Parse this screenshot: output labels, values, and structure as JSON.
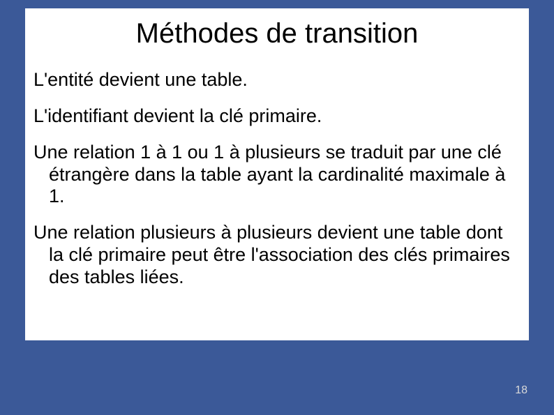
{
  "slide": {
    "title": "Méthodes de transition",
    "bullets": [
      "L'entité devient une table.",
      "L'identifiant devient la clé primaire.",
      "Une relation 1 à 1 ou 1 à plusieurs se traduit par une clé étrangère dans la table ayant la cardinalité maximale à 1.",
      "Une relation plusieurs à plusieurs devient une table dont la clé primaire peut être l'association des clés primaires des tables liées."
    ],
    "page_number": "18"
  },
  "style": {
    "background_color": "#3b5998",
    "content_background": "#ffffff",
    "title_fontsize": 40,
    "body_fontsize": 27,
    "text_color": "#000000",
    "page_number_color": "#d9d9d9",
    "page_number_fontsize": 16,
    "slide_width": 794,
    "slide_height": 595
  }
}
